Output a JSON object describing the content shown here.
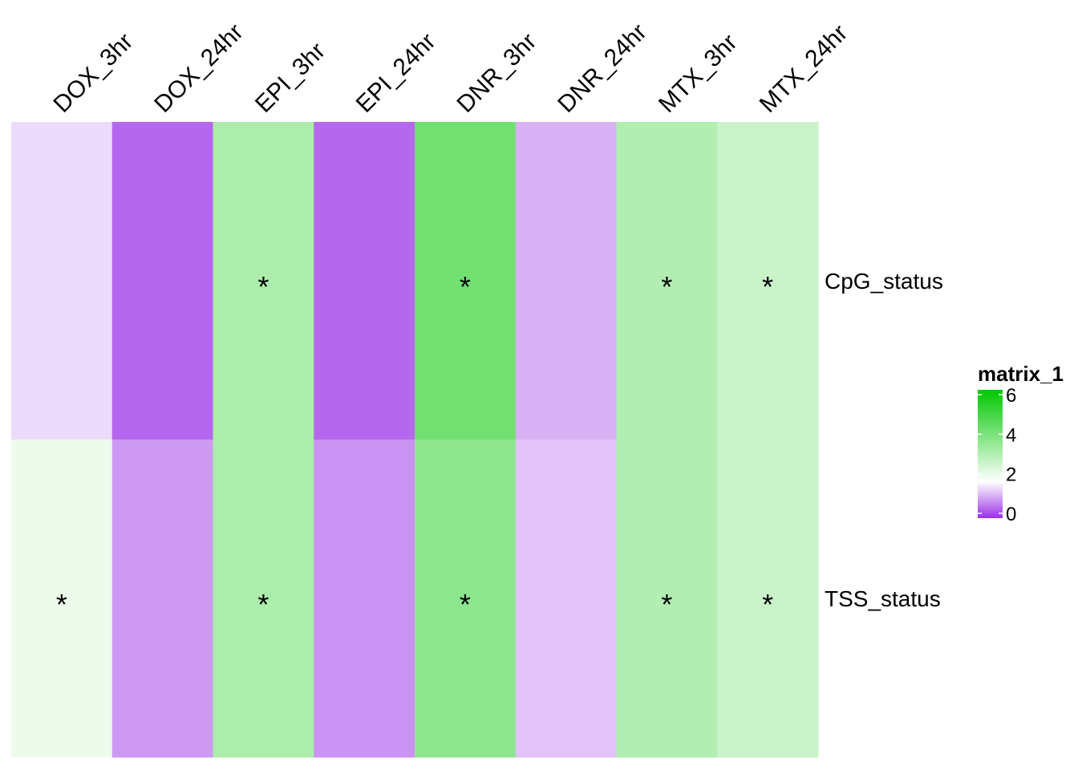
{
  "chart_data": {
    "type": "heatmap",
    "columns": [
      "DOX_3hr",
      "DOX_24hr",
      "EPI_3hr",
      "EPI_24hr",
      "DNR_3hr",
      "DNR_24hr",
      "MTX_3hr",
      "MTX_24hr"
    ],
    "rows": [
      "CpG_status",
      "TSS_status"
    ],
    "values": [
      [
        1.4,
        0.45,
        3.1,
        0.45,
        4.1,
        1.05,
        3.0,
        2.6
      ],
      [
        2.0,
        0.85,
        3.1,
        0.8,
        3.6,
        1.2,
        3.0,
        2.6
      ]
    ],
    "significance_marker": "*",
    "significant": [
      [
        false,
        false,
        true,
        false,
        true,
        false,
        true,
        true
      ],
      [
        true,
        false,
        true,
        false,
        true,
        false,
        true,
        true
      ]
    ],
    "legend": {
      "title": "matrix_1",
      "ticks": [
        "0",
        "2",
        "4",
        "6"
      ],
      "range": [
        0,
        6
      ],
      "color_stops": [
        {
          "value": 0,
          "color": "#9a32e6"
        },
        {
          "value": 1.7,
          "color": "#ffffff"
        },
        {
          "value": 6,
          "color": "#00c800"
        }
      ]
    },
    "xlabel": "",
    "ylabel": ""
  }
}
